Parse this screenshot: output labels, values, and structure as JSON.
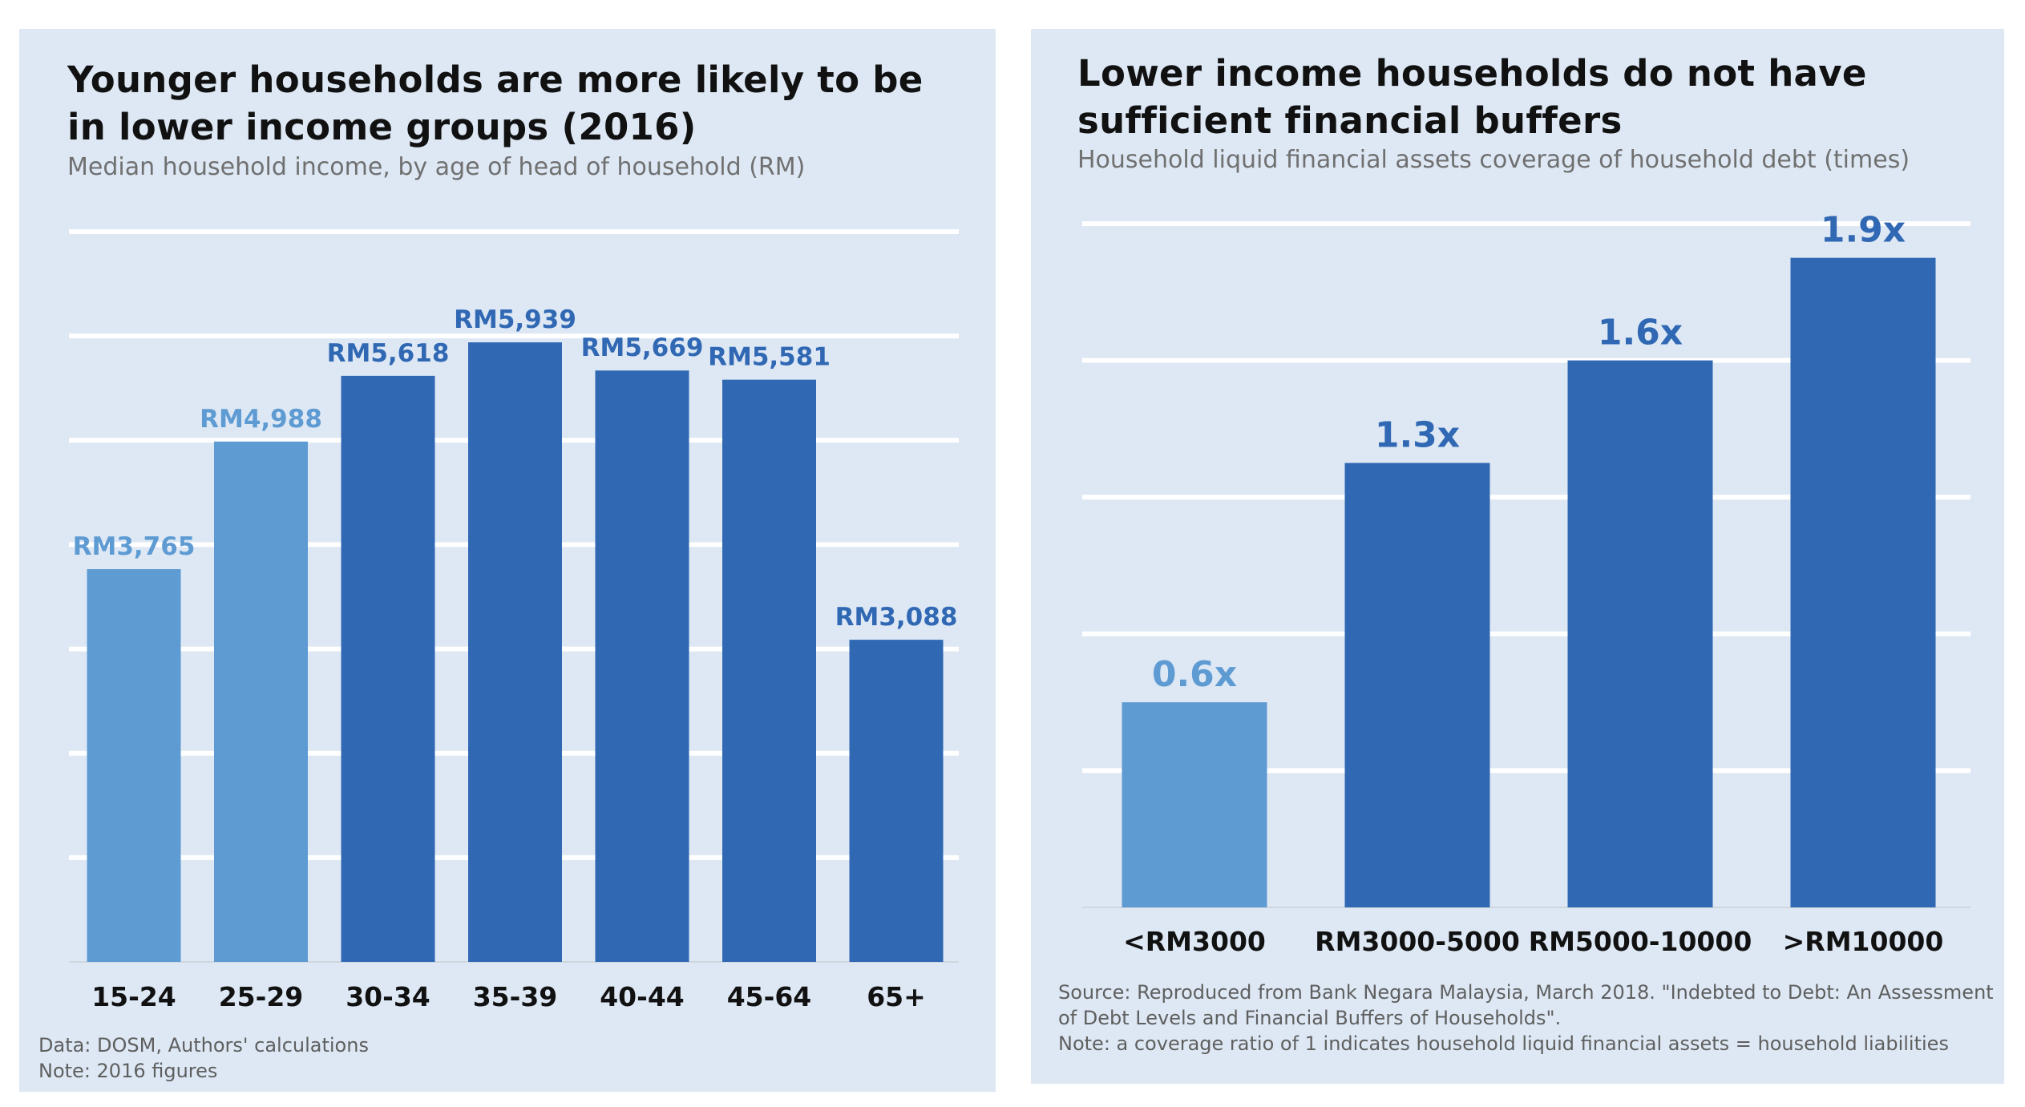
{
  "left": {
    "title": "Younger households are more likely to be in lower income groups (2016)",
    "subtitle": "Median household income, by age of head of household (RM)",
    "source": "Data: DOSM, Authors' calculations",
    "note": "Note: 2016  figures"
  },
  "right": {
    "title": "Lower income households do not have sufficient financial buffers",
    "subtitle": "Household liquid financial assets coverage of household debt (times)",
    "source_line1": "Source: Reproduced from Bank Negara Malaysia, March 2018. \"Indebted to Debt: An Assessment",
    "source_line2": "of Debt Levels and Financial Buffers of Households\".",
    "note": "Note: a coverage ratio of 1 indicates household liquid financial assets = household liabilities"
  },
  "colors": {
    "light_bar": "#5f9bd3",
    "dark_bar": "#3068b4",
    "panel_bg": "#dde8f4",
    "grid": "#ffffff"
  },
  "chart_data": [
    {
      "type": "bar",
      "title": "Younger households are more likely to be in lower income groups (2016)",
      "subtitle": "Median household income, by age of head of household (RM)",
      "categories": [
        "15-24",
        "25-29",
        "30-34",
        "35-39",
        "40-44",
        "45-64",
        "65+"
      ],
      "values": [
        3765,
        4988,
        5618,
        5939,
        5669,
        5581,
        3088
      ],
      "labels": [
        "RM3,765",
        "RM4,988",
        "RM5,618",
        "RM5,939",
        "RM5,669",
        "RM5,581",
        "RM3,088"
      ],
      "highlight": [
        true,
        true,
        false,
        false,
        false,
        false,
        false
      ],
      "ylim": [
        0,
        7000
      ],
      "grid": true,
      "xlabel": "",
      "ylabel": ""
    },
    {
      "type": "bar",
      "title": "Lower income households do not have sufficient financial buffers",
      "subtitle": "Household liquid financial assets coverage of household debt (times)",
      "categories": [
        "<RM3000",
        "RM3000-5000",
        "RM5000-10000",
        ">RM10000"
      ],
      "values": [
        0.6,
        1.3,
        1.6,
        1.9
      ],
      "labels": [
        "0.6x",
        "1.3x",
        "1.6x",
        "1.9x"
      ],
      "highlight": [
        true,
        false,
        false,
        false
      ],
      "ylim": [
        0,
        2.0
      ],
      "grid": true,
      "xlabel": "",
      "ylabel": ""
    }
  ]
}
